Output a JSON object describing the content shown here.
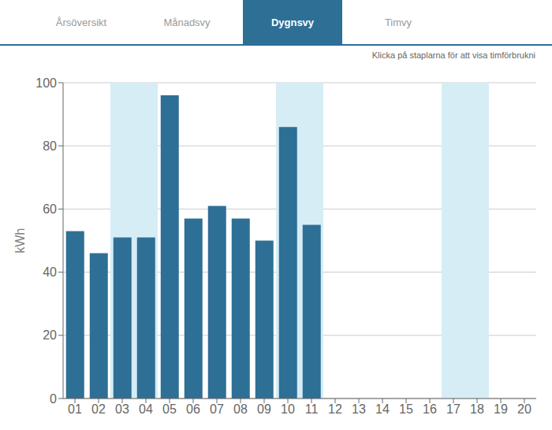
{
  "chart_data": {
    "type": "bar",
    "subtitle": "Klicka på staplarna för att visa timförbrukni",
    "annotations": [
      {
        "text": "Årsöversikt",
        "active": false
      },
      {
        "text": "Månadsvy",
        "active": false
      },
      {
        "text": "Dygnsvy",
        "active": true
      },
      {
        "text": "Timvy",
        "active": false
      }
    ],
    "categories": [
      "01",
      "02",
      "03",
      "04",
      "05",
      "06",
      "07",
      "08",
      "09",
      "10",
      "11",
      "12",
      "13",
      "14",
      "15",
      "16",
      "17",
      "18",
      "19",
      "20"
    ],
    "values": [
      53,
      46,
      51,
      51,
      96,
      57,
      61,
      57,
      50,
      86,
      55,
      0,
      0,
      0,
      0,
      0,
      0,
      0,
      0,
      0
    ],
    "color": "#2e6f96",
    "bands": [
      {
        "from": "03",
        "to": "04",
        "color": "#d6edf5"
      },
      {
        "from": "10",
        "to": "11",
        "color": "#d6edf5"
      },
      {
        "from": "17",
        "to": "18",
        "color": "#d6edf5"
      }
    ],
    "ylabel": "kWh",
    "ylim": [
      0,
      100
    ],
    "yticks": [
      0,
      20,
      40,
      60,
      80,
      100
    ],
    "grid": true
  }
}
